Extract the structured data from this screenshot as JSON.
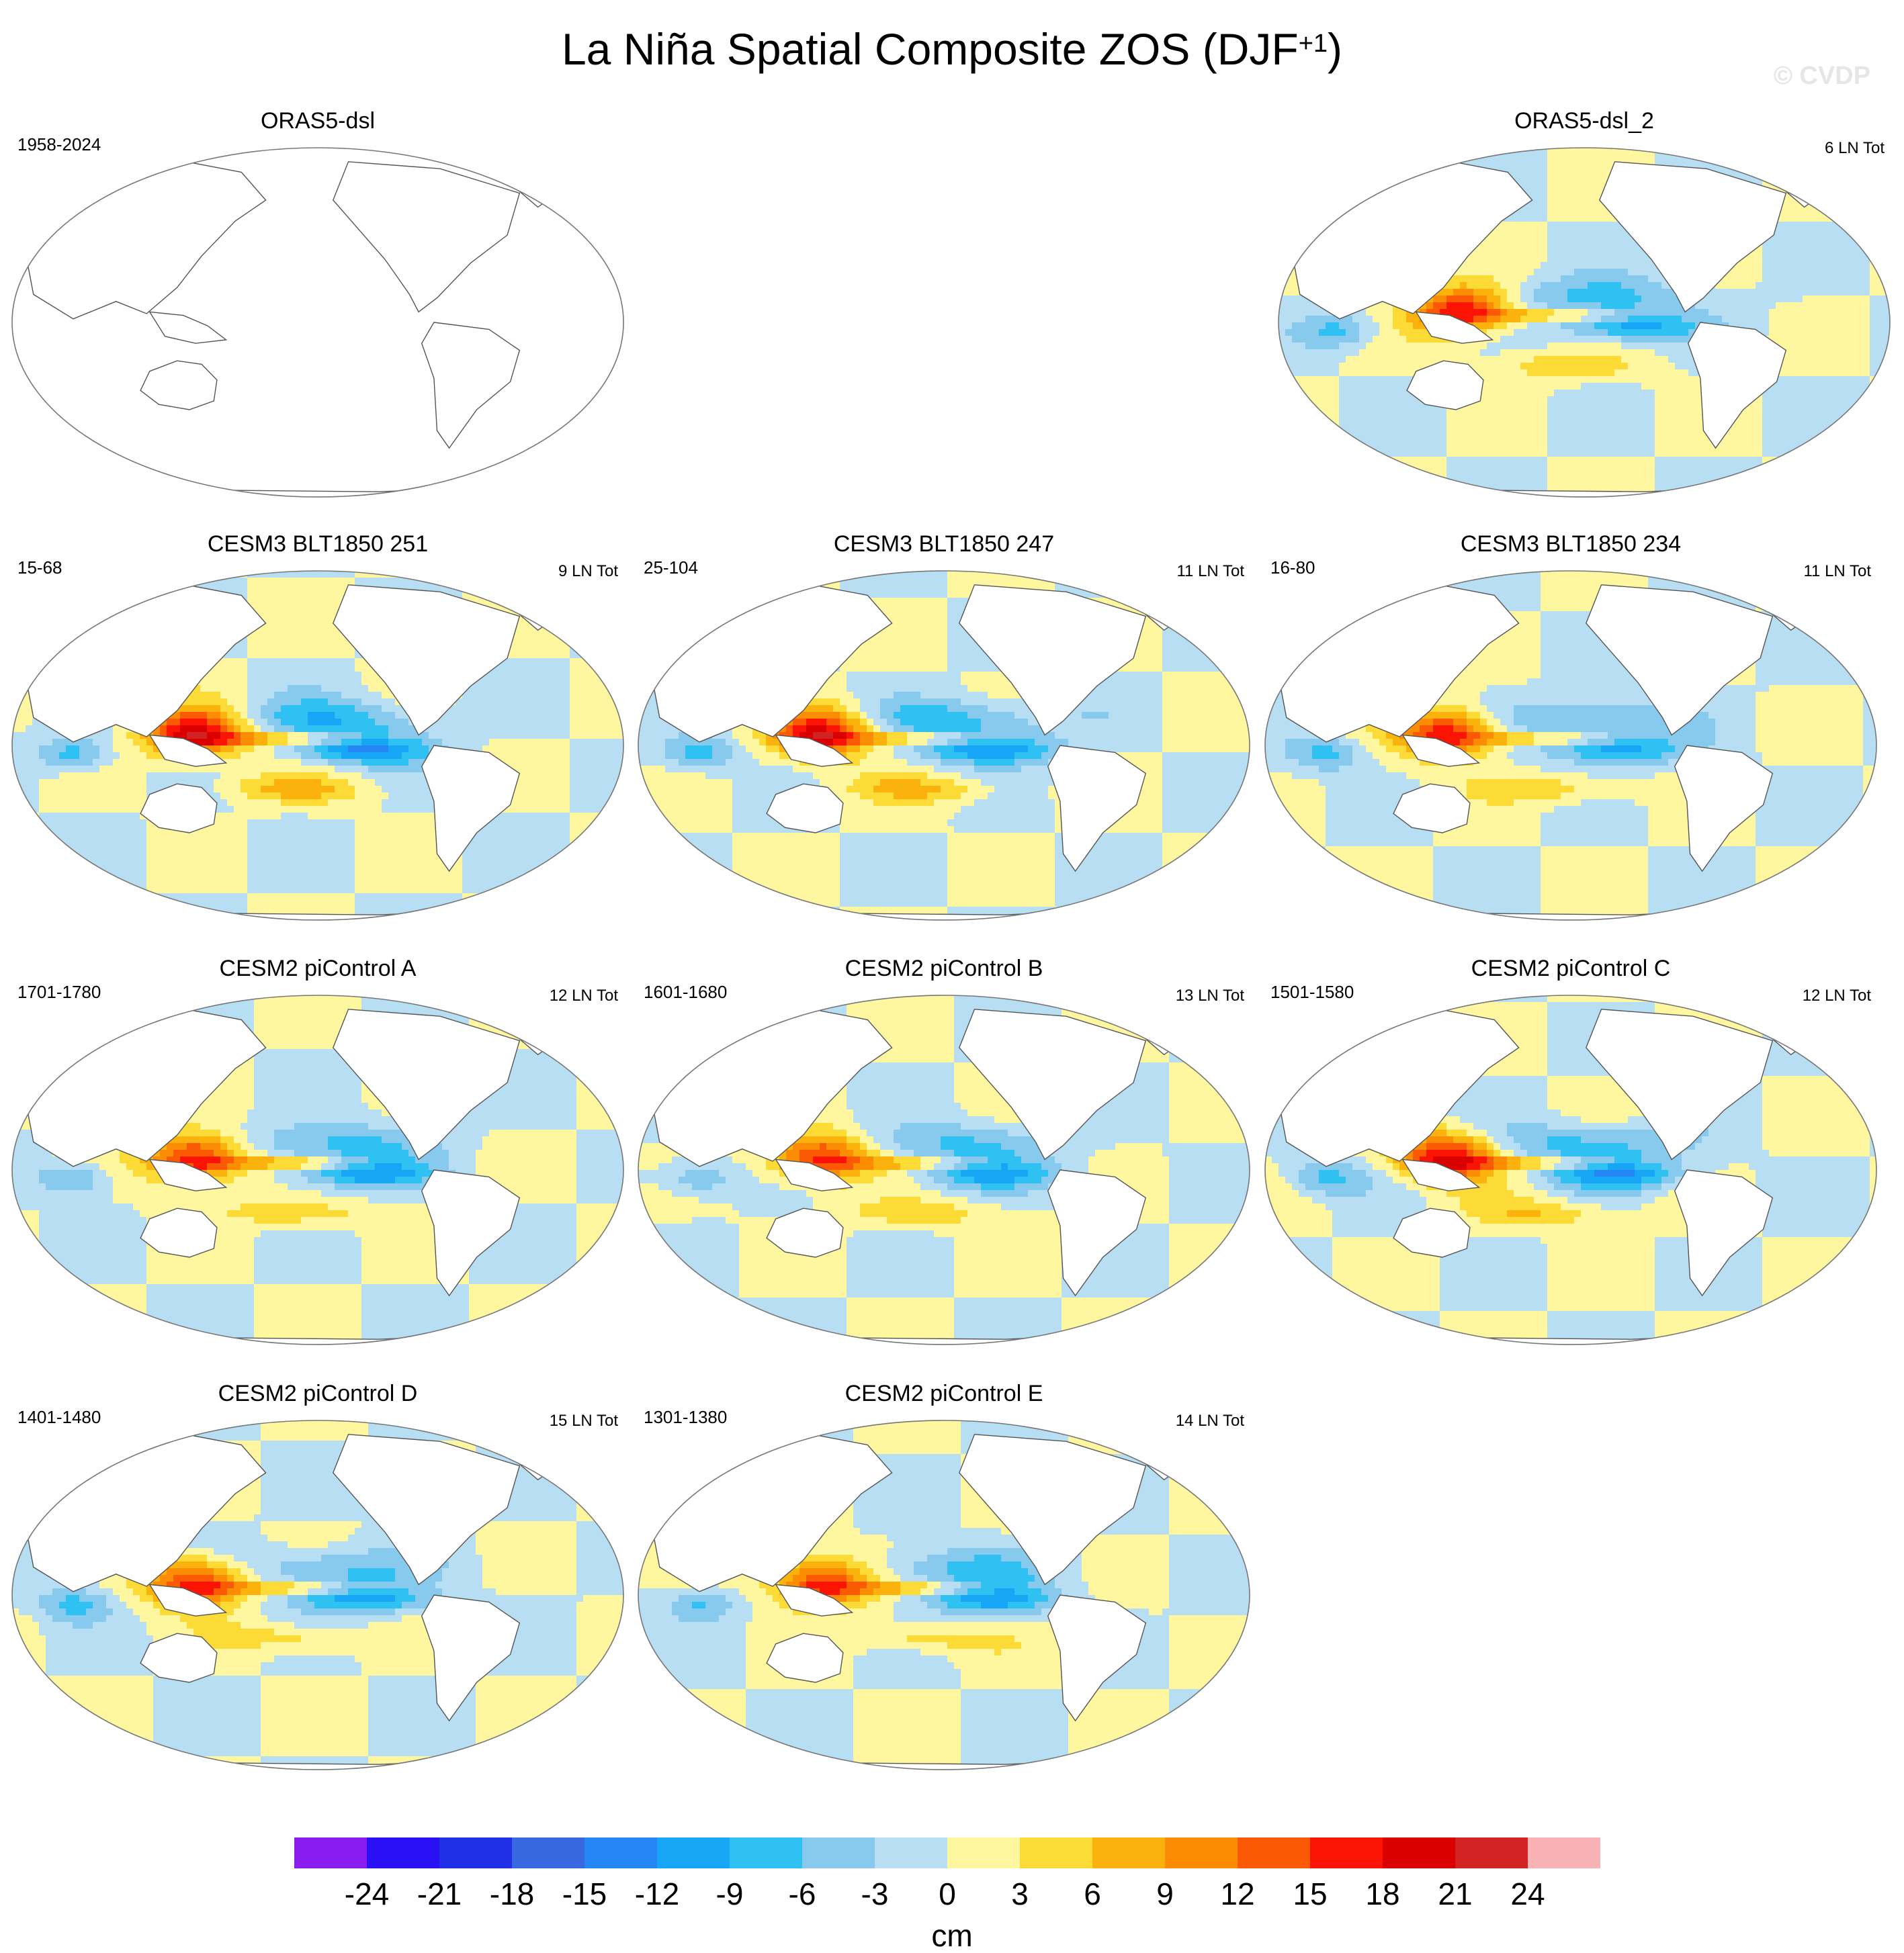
{
  "title": {
    "prefix": "La Niña Spatial Composite ZOS (DJF",
    "superscript": "+1",
    "suffix": ")"
  },
  "watermark": "© CVDP",
  "chart_data": {
    "type": "heatmap",
    "projection": "Robinson, Pacific-centered",
    "variable": "ZOS",
    "season": "DJF+1",
    "units": "cm",
    "colorbar": {
      "levels": [
        -24,
        -21,
        -18,
        -15,
        -12,
        -9,
        -6,
        -3,
        0,
        3,
        6,
        9,
        12,
        15,
        18,
        21,
        24
      ],
      "tick_labels": [
        "-24",
        "-21",
        "-18",
        "-15",
        "-12",
        "-9",
        "-6",
        "-3",
        "0",
        "3",
        "6",
        "9",
        "12",
        "15",
        "18",
        "21",
        "24"
      ],
      "colors": [
        "#8a1cf0",
        "#2a10f5",
        "#2130e6",
        "#3868e0",
        "#2585f2",
        "#16a6f5",
        "#2ec1f2",
        "#88c9ee",
        "#b7def2",
        "#fff6a0",
        "#fddb36",
        "#fbb20c",
        "#fb8c04",
        "#fb5904",
        "#fb1304",
        "#db0000",
        "#d32222",
        "#f8b1b5"
      ]
    },
    "panels": [
      {
        "title": "ORAS5-dsl",
        "period": "1958-2024",
        "count": "",
        "amplitude": 0
      },
      {
        "title": "ORAS5-dsl_2",
        "period": "",
        "count": "6 LN Tot",
        "amplitude": 0.85
      },
      {
        "title": "CESM3 BLT1850 251",
        "period": "15-68",
        "count": "9 LN Tot",
        "amplitude": 1.0
      },
      {
        "title": "CESM3 BLT1850 247",
        "period": "25-104",
        "count": "11 LN Tot",
        "amplitude": 0.95
      },
      {
        "title": "CESM3 BLT1850 234",
        "period": "16-80",
        "count": "11 LN Tot",
        "amplitude": 0.85
      },
      {
        "title": "CESM2 piControl A",
        "period": "1701-1780",
        "count": "12 LN Tot",
        "amplitude": 0.9
      },
      {
        "title": "CESM2 piControl B",
        "period": "1601-1680",
        "count": "13 LN Tot",
        "amplitude": 0.8
      },
      {
        "title": "CESM2 piControl C",
        "period": "1501-1580",
        "count": "12 LN Tot",
        "amplitude": 0.95
      },
      {
        "title": "CESM2 piControl D",
        "period": "1401-1480",
        "count": "15 LN Tot",
        "amplitude": 0.85
      },
      {
        "title": "CESM2 piControl E",
        "period": "1301-1380",
        "count": "14 LN Tot",
        "amplitude": 0.85
      }
    ]
  }
}
